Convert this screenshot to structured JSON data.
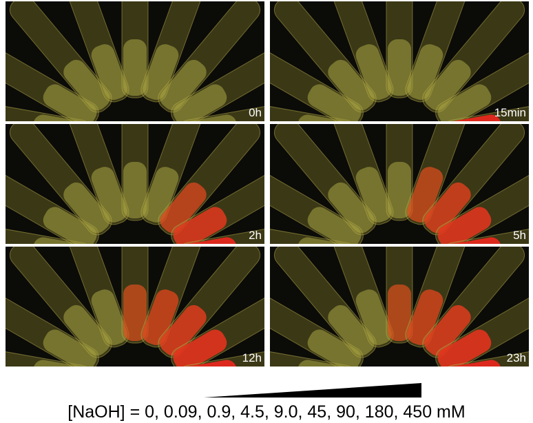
{
  "panels": [
    {
      "label": "0h"
    },
    {
      "label": "15min"
    },
    {
      "label": "2h"
    },
    {
      "label": "5h"
    },
    {
      "label": "12h"
    },
    {
      "label": "23h"
    }
  ],
  "caption": "[NaOH] = 0, 0.09, 0.9, 4.5, 9.0, 45, 90, 180, 450 mM"
}
